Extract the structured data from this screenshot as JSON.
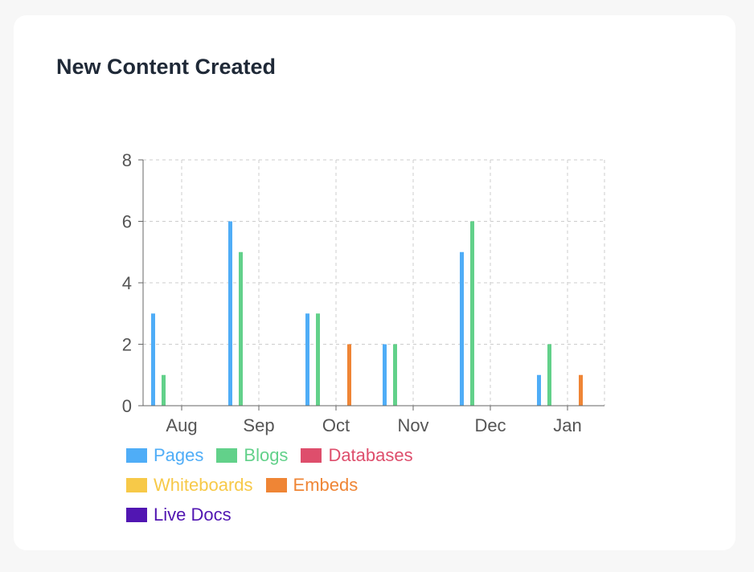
{
  "chart_data": {
    "type": "bar",
    "title": "New Content Created",
    "categories": [
      "Aug",
      "Sep",
      "Oct",
      "Nov",
      "Dec",
      "Jan"
    ],
    "yticks": [
      "0",
      "2",
      "4",
      "6",
      "8"
    ],
    "ylim": [
      0,
      8
    ],
    "grid": true,
    "legend_position": "bottom",
    "series": [
      {
        "name": "Pages",
        "color": "#4fadf7",
        "values": [
          3,
          6,
          3,
          2,
          5,
          1
        ]
      },
      {
        "name": "Blogs",
        "color": "#62d18a",
        "values": [
          1,
          5,
          3,
          2,
          6,
          2
        ]
      },
      {
        "name": "Databases",
        "color": "#de4e6c",
        "values": [
          0,
          0,
          0,
          0,
          0,
          0
        ]
      },
      {
        "name": "Whiteboards",
        "color": "#f7c948",
        "values": [
          0,
          0,
          0,
          0,
          0,
          0
        ]
      },
      {
        "name": "Embeds",
        "color": "#ef8535",
        "values": [
          0,
          0,
          2,
          0,
          0,
          1
        ]
      },
      {
        "name": "Live Docs",
        "color": "#5116b2",
        "values": [
          0,
          0,
          0,
          0,
          0,
          0
        ]
      }
    ]
  }
}
